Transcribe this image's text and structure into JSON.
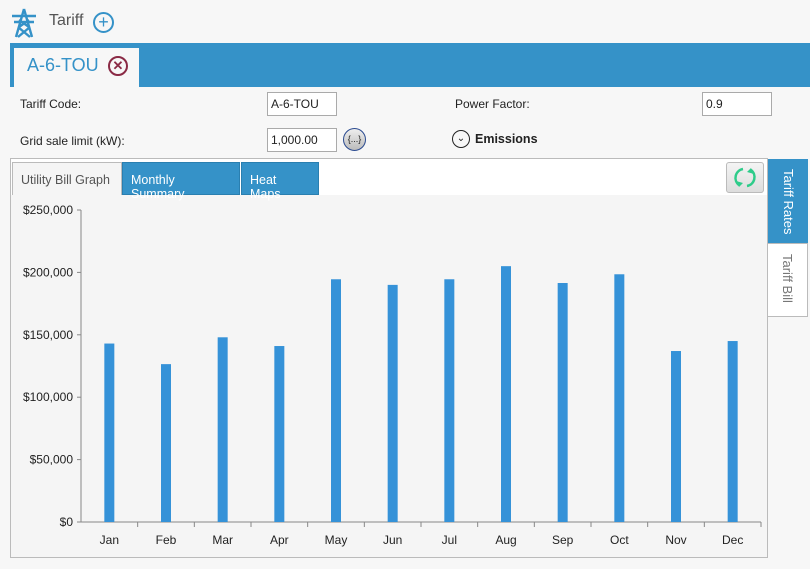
{
  "header": {
    "title": "Tariff",
    "icon": "transmission-tower-icon",
    "add_icon": "plus-circle-icon"
  },
  "doc_tab": {
    "label": "A-6-TOU",
    "close_icon": "close-circle-icon"
  },
  "form": {
    "tariff_code_label": "Tariff Code:",
    "tariff_code_value": "A-6-TOU",
    "grid_limit_label": "Grid sale limit (kW):",
    "grid_limit_value": "1,000.00",
    "expression_button": "{...}",
    "power_factor_label": "Power Factor:",
    "power_factor_value": "0.9",
    "emissions_label": "Emissions"
  },
  "tabs": [
    {
      "label": "Utility Bill Graph",
      "selected": true
    },
    {
      "label": "Monthly Summary"
    },
    {
      "label": "Heat Maps"
    }
  ],
  "side_tabs": [
    {
      "label": "Tariff Rates"
    },
    {
      "label": "Tariff Bill",
      "selected": true
    }
  ],
  "colors": {
    "accent": "#3592c8",
    "bar": "#3592d8",
    "close": "#8a2a45",
    "refresh": "#2ecc8a"
  },
  "chart_data": {
    "type": "bar",
    "categories": [
      "Jan",
      "Feb",
      "Mar",
      "Apr",
      "May",
      "Jun",
      "Jul",
      "Aug",
      "Sep",
      "Oct",
      "Nov",
      "Dec"
    ],
    "values": [
      143000,
      126500,
      148000,
      141000,
      194500,
      190000,
      194500,
      205000,
      191500,
      198500,
      137000,
      145000
    ],
    "ylim": [
      0,
      250000
    ],
    "yticks": [
      "$0",
      "$50,000",
      "$100,000",
      "$150,000",
      "$200,000",
      "$250,000"
    ],
    "grid": false
  }
}
